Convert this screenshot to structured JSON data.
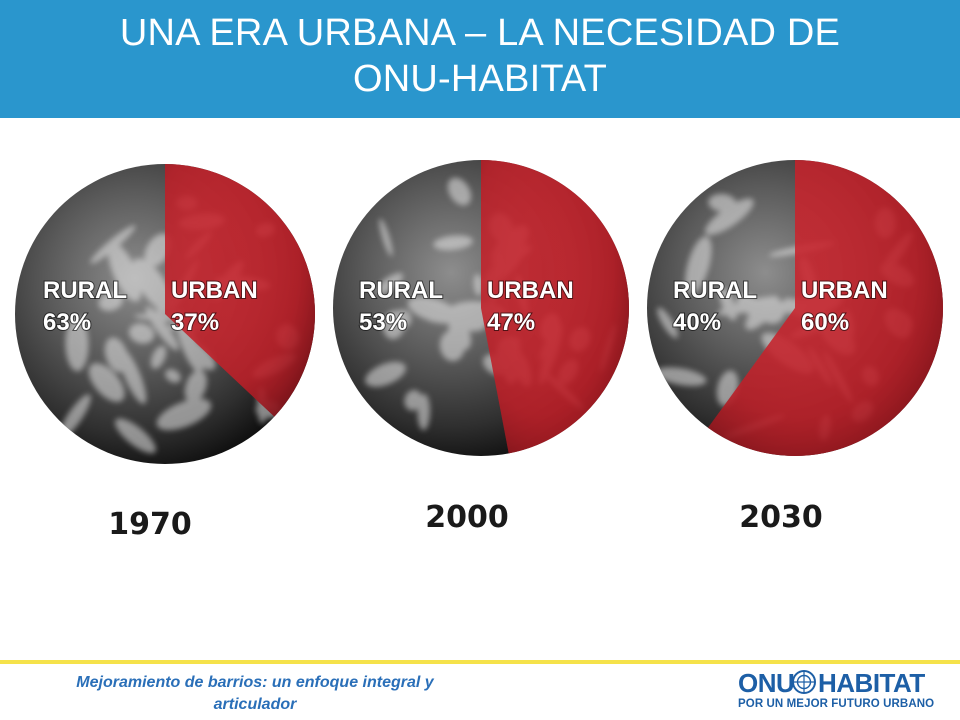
{
  "header": {
    "title_line1": "UNA ERA URBANA – LA NECESIDAD DE",
    "title_line2": "ONU-HABITAT"
  },
  "chart_data": {
    "type": "pie",
    "charts": [
      {
        "year": "1970",
        "slices": [
          {
            "label": "URBAN",
            "value": 37
          },
          {
            "label": "RURAL",
            "value": 63
          }
        ]
      },
      {
        "year": "2000",
        "slices": [
          {
            "label": "URBAN",
            "value": 47
          },
          {
            "label": "RURAL",
            "value": 53
          }
        ]
      },
      {
        "year": "2030",
        "slices": [
          {
            "label": "URBAN",
            "value": 60
          },
          {
            "label": "RURAL",
            "value": 40
          }
        ]
      }
    ]
  },
  "labels": [
    {
      "rural": "RURAL",
      "rural_pct": "63%",
      "urban": "URBAN",
      "urban_pct": "37%",
      "year": "1970"
    },
    {
      "rural": "RURAL",
      "rural_pct": "53%",
      "urban": "URBAN",
      "urban_pct": "47%",
      "year": "2000"
    },
    {
      "rural": "RURAL",
      "rural_pct": "40%",
      "urban": "URBAN",
      "urban_pct": "60%",
      "year": "2030"
    }
  ],
  "footer": {
    "line1": "Mejoramiento de barrios: un enfoque integral y",
    "line2": "articulador"
  },
  "logo": {
    "word1": "ONU",
    "word2": "HABITAT",
    "tagline": "POR UN MEJOR FUTURO URBANO"
  },
  "colors": {
    "header_bg": "#2a96cd",
    "urban": "#c8232c",
    "earth_dark": "#262626",
    "footer_line": "#f5e24a",
    "footer_text": "#2a6fb8",
    "logo": "#1d5fa6"
  }
}
